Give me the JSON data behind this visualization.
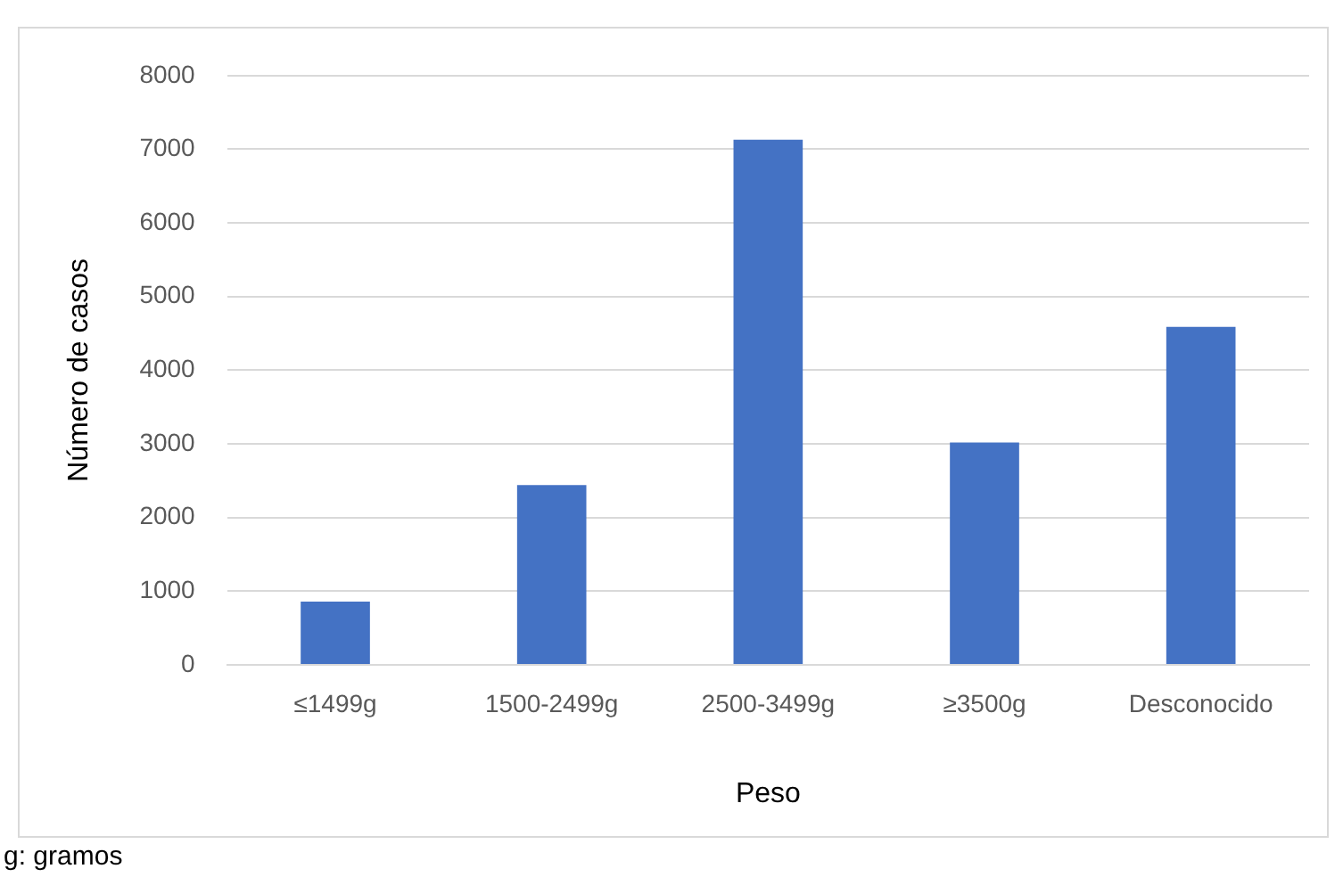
{
  "chart_data": {
    "type": "bar",
    "xlabel": "Peso",
    "ylabel": "Número de casos",
    "categories": [
      "≤1499g",
      "1500-2499g",
      "2500-3499g",
      "≥3500g",
      "Desconocido"
    ],
    "values": [
      860,
      2440,
      7130,
      3020,
      4590
    ],
    "color": "#4472c4",
    "ylim": [
      0,
      8000
    ],
    "yticks": [
      0,
      1000,
      2000,
      3000,
      4000,
      5000,
      6000,
      7000,
      8000
    ],
    "grid": "y",
    "annotations": [
      "g: gramos"
    ]
  }
}
